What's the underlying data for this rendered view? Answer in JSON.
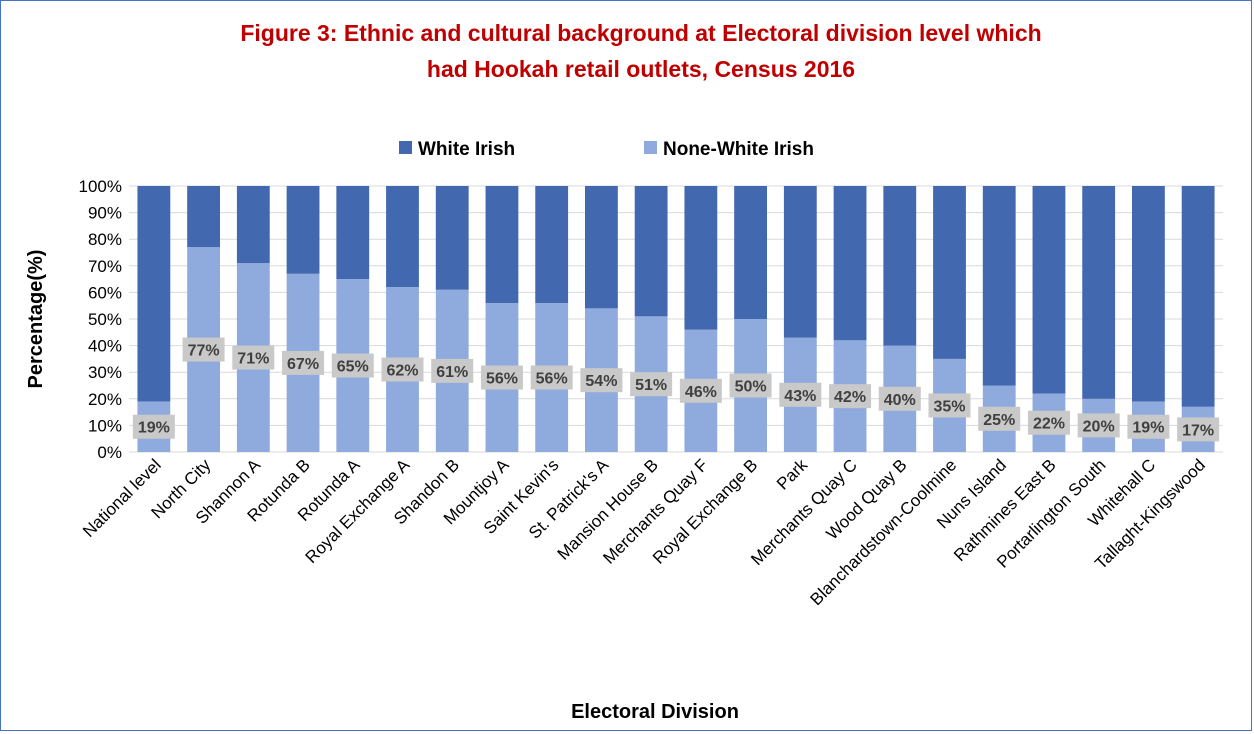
{
  "chart_data": {
    "type": "bar",
    "stacked": true,
    "title_line1": "Figure 3: Ethnic and cultural background at Electoral division level which",
    "title_line2": "had Hookah retail outlets, Census 2016",
    "xlabel": "Electoral Division",
    "ylabel": "Percentage(%)",
    "ylim": [
      0,
      100
    ],
    "yticks": [
      "0%",
      "10%",
      "20%",
      "30%",
      "40%",
      "50%",
      "60%",
      "70%",
      "80%",
      "90%",
      "100%"
    ],
    "grid": true,
    "legend_position": "top",
    "categories": [
      "National level",
      "North City",
      "Shannon A",
      "Rotunda B",
      "Rotunda A",
      "Royal Exchange A",
      "Shandon B",
      "Mountjoy A",
      "Saint Kevin's",
      "St. Patrick's A",
      "Mansion House B",
      "Merchants Quay F",
      "Royal Exchange B",
      "Park",
      "Merchants Quay C",
      "Wood Quay B",
      "Blanchardstown-Coolmine",
      "Nuns Island",
      "Rathmines East B",
      "Portarlington South",
      "Whitehall C",
      "Tallaght-Kingswood"
    ],
    "series": [
      {
        "name": "None-White Irish",
        "color": "#8faadc",
        "values": [
          19,
          77,
          71,
          67,
          65,
          62,
          61,
          56,
          56,
          54,
          51,
          46,
          50,
          43,
          42,
          40,
          35,
          25,
          22,
          20,
          19,
          17
        ],
        "data_labels": [
          "19%",
          "77%",
          "71%",
          "67%",
          "65%",
          "62%",
          "61%",
          "56%",
          "56%",
          "54%",
          "51%",
          "46%",
          "50%",
          "43%",
          "42%",
          "40%",
          "35%",
          "25%",
          "22%",
          "20%",
          "19%",
          "17%"
        ]
      },
      {
        "name": "White Irish",
        "color": "#4268b0",
        "values": [
          81,
          23,
          29,
          33,
          35,
          38,
          39,
          44,
          44,
          46,
          49,
          54,
          50,
          57,
          58,
          60,
          65,
          75,
          78,
          80,
          81,
          83
        ]
      }
    ],
    "legend": [
      {
        "name": "White Irish",
        "color": "#4268b0"
      },
      {
        "name": "None-White Irish",
        "color": "#8faadc"
      }
    ]
  }
}
